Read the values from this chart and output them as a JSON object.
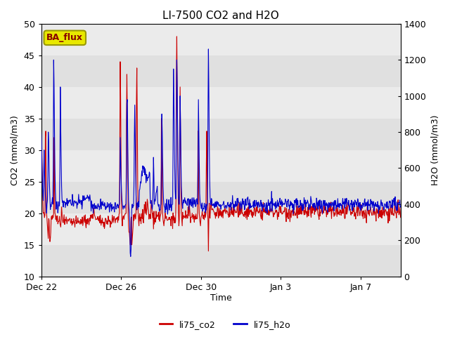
{
  "title": "LI-7500 CO2 and H2O",
  "xlabel": "Time",
  "ylabel_left": "CO2 (mmol/m3)",
  "ylabel_right": "H2O (mmol/m3)",
  "ylim_left": [
    10,
    50
  ],
  "ylim_right": [
    0,
    1400
  ],
  "yticks_left": [
    10,
    15,
    20,
    25,
    30,
    35,
    40,
    45,
    50
  ],
  "yticks_right": [
    0,
    200,
    400,
    600,
    800,
    1000,
    1200,
    1400
  ],
  "color_co2": "#cc0000",
  "color_h2o": "#0000cc",
  "legend_co2": "li75_co2",
  "legend_h2o": "li75_h2o",
  "annotation_text": "BA_flux",
  "annotation_bg": "#e8e800",
  "annotation_border": "#999900",
  "annotation_text_color": "#880000",
  "fig_bg_color": "#ffffff",
  "plot_bg_color": "#ffffff",
  "band_color_dark": "#e0e0e0",
  "band_color_light": "#ebebeb",
  "title_fontsize": 11,
  "axis_fontsize": 9,
  "tick_fontsize": 9,
  "legend_fontsize": 9,
  "line_width": 0.8,
  "xtick_labels": [
    "Dec 22",
    "Dec 26",
    "Dec 30",
    "Jan 3",
    "Jan 7"
  ]
}
